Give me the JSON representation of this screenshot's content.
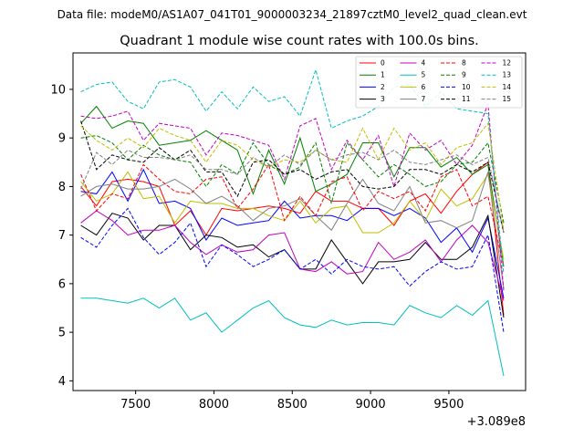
{
  "figure": {
    "suptitle": "Data file: modeM0/AS1A07_041T01_9000003234_21897cztM0_level2_quad_clean.evt"
  },
  "chart_data": {
    "type": "line",
    "title": "Quadrant 1 module wise count rates with 100.0s bins.",
    "xlabel": "",
    "ylabel": "",
    "x_offset_label": "+3.089e8",
    "xlim": [
      7100,
      9990
    ],
    "ylim": [
      3.8,
      10.75
    ],
    "x_ticks": [
      7500,
      8000,
      8500,
      9000,
      9500
    ],
    "x_tick_labels": [
      "7500",
      "8000",
      "8500",
      "9000",
      "9500"
    ],
    "y_ticks": [
      4,
      5,
      6,
      7,
      8,
      9,
      10
    ],
    "y_tick_labels": [
      "4",
      "5",
      "6",
      "7",
      "8",
      "9",
      "10"
    ],
    "grid": false,
    "legend_position": "upper-right",
    "x": [
      7150,
      7250,
      7350,
      7450,
      7550,
      7650,
      7750,
      7850,
      7950,
      8050,
      8150,
      8250,
      8350,
      8450,
      8550,
      8650,
      8750,
      8850,
      8950,
      9050,
      9150,
      9250,
      9350,
      9450,
      9550,
      9650,
      9750,
      9850
    ],
    "series": [
      {
        "name": "0",
        "color": "#ff0000",
        "dash": "solid",
        "values": [
          8.0,
          7.6,
          8.1,
          8.15,
          8.1,
          8.0,
          7.2,
          7.5,
          7.0,
          7.55,
          7.5,
          7.55,
          7.6,
          7.55,
          7.45,
          7.9,
          7.7,
          7.7,
          7.55,
          7.55,
          7.2,
          7.7,
          7.85,
          7.45,
          7.9,
          8.25,
          8.5,
          5.35
        ]
      },
      {
        "name": "1",
        "color": "#008000",
        "dash": "solid",
        "values": [
          9.3,
          9.65,
          9.2,
          9.35,
          9.3,
          8.85,
          8.9,
          8.95,
          9.15,
          8.95,
          8.75,
          7.85,
          8.75,
          8.05,
          9.0,
          7.9,
          8.05,
          8.25,
          8.9,
          8.9,
          8.2,
          8.8,
          8.8,
          8.4,
          8.6,
          8.25,
          8.45,
          6.35
        ]
      },
      {
        "name": "2",
        "color": "#0000ff",
        "dash": "solid",
        "values": [
          7.9,
          7.85,
          8.3,
          7.7,
          8.35,
          7.65,
          7.7,
          7.55,
          6.9,
          7.35,
          7.2,
          7.25,
          7.3,
          7.7,
          7.35,
          7.4,
          7.4,
          7.3,
          7.55,
          7.55,
          7.4,
          7.55,
          7.35,
          6.85,
          7.15,
          6.65,
          7.35,
          5.7
        ]
      },
      {
        "name": "3",
        "color": "#000000",
        "dash": "solid",
        "values": [
          7.2,
          7.0,
          7.45,
          7.35,
          6.9,
          7.2,
          7.2,
          6.7,
          7.0,
          6.95,
          6.75,
          6.8,
          6.55,
          6.7,
          6.3,
          6.3,
          6.9,
          6.45,
          6.0,
          6.45,
          6.45,
          6.5,
          6.85,
          6.5,
          6.5,
          6.75,
          7.4,
          5.3
        ]
      },
      {
        "name": "4",
        "color": "#c000c0",
        "dash": "solid",
        "values": [
          7.25,
          7.5,
          7.3,
          7.0,
          7.1,
          7.1,
          7.2,
          6.85,
          6.6,
          6.8,
          6.65,
          6.7,
          7.0,
          7.05,
          6.3,
          6.25,
          6.45,
          6.2,
          6.25,
          6.85,
          6.5,
          6.65,
          6.9,
          6.45,
          6.9,
          7.2,
          6.85,
          5.65
        ]
      },
      {
        "name": "5",
        "color": "#00bfbf",
        "dash": "solid",
        "values": [
          5.7,
          5.7,
          5.65,
          5.6,
          5.7,
          5.5,
          5.7,
          5.25,
          5.4,
          5.0,
          5.25,
          5.5,
          5.65,
          5.3,
          5.15,
          5.1,
          5.25,
          5.15,
          5.2,
          5.2,
          5.15,
          5.55,
          5.4,
          5.3,
          5.55,
          5.35,
          5.65,
          4.1
        ]
      },
      {
        "name": "6",
        "color": "#bfbf00",
        "dash": "solid",
        "values": [
          8.1,
          7.7,
          7.85,
          8.3,
          7.75,
          7.8,
          7.25,
          7.7,
          7.65,
          7.65,
          7.55,
          7.55,
          7.4,
          7.3,
          7.7,
          7.25,
          7.55,
          7.6,
          7.05,
          7.05,
          7.25,
          7.7,
          7.3,
          7.95,
          7.6,
          7.75,
          8.25,
          6.5
        ]
      },
      {
        "name": "7",
        "color": "#808080",
        "dash": "solid",
        "values": [
          7.8,
          8.0,
          8.05,
          7.95,
          7.95,
          8.0,
          8.15,
          7.95,
          7.65,
          7.8,
          7.6,
          7.3,
          7.55,
          7.6,
          7.75,
          7.4,
          7.1,
          7.65,
          8.15,
          7.65,
          7.5,
          8.0,
          7.25,
          7.3,
          7.15,
          7.3,
          8.3,
          5.9
        ]
      },
      {
        "name": "8",
        "color": "#ff0000",
        "dash": "dashed",
        "values": [
          8.25,
          7.5,
          7.85,
          7.75,
          8.45,
          8.15,
          7.9,
          7.85,
          8.15,
          8.2,
          7.55,
          7.95,
          8.45,
          7.3,
          7.8,
          7.4,
          8.1,
          8.2,
          7.5,
          7.9,
          7.75,
          7.9,
          7.5,
          8.2,
          8.35,
          7.6,
          7.8,
          6.35
        ]
      },
      {
        "name": "9",
        "color": "#008000",
        "dash": "dashed",
        "values": [
          9.0,
          9.05,
          8.9,
          8.55,
          8.85,
          8.65,
          8.55,
          8.5,
          8.0,
          8.45,
          8.25,
          8.9,
          8.45,
          8.25,
          8.4,
          8.9,
          7.65,
          8.9,
          8.55,
          8.2,
          8.45,
          8.25,
          8.0,
          8.1,
          8.45,
          8.5,
          8.9,
          7.25
        ]
      },
      {
        "name": "10",
        "color": "#0000ff",
        "dash": "dashed",
        "values": [
          6.95,
          6.75,
          7.2,
          7.55,
          6.95,
          6.6,
          6.85,
          7.25,
          6.35,
          6.8,
          6.6,
          6.35,
          6.5,
          6.7,
          6.3,
          6.5,
          6.2,
          6.5,
          6.35,
          6.3,
          6.35,
          5.95,
          6.25,
          6.45,
          6.3,
          6.35,
          7.0,
          5.0
        ]
      },
      {
        "name": "11",
        "color": "#000000",
        "dash": "dashed",
        "values": [
          9.35,
          8.35,
          8.65,
          8.55,
          8.5,
          8.8,
          8.55,
          8.75,
          8.3,
          8.3,
          7.8,
          8.5,
          8.55,
          8.25,
          8.35,
          8.15,
          8.3,
          8.35,
          8.0,
          7.95,
          8.0,
          8.35,
          8.35,
          8.25,
          8.45,
          8.3,
          8.5,
          7.05
        ]
      },
      {
        "name": "12",
        "color": "#c000c0",
        "dash": "dashed",
        "values": [
          9.45,
          9.4,
          9.45,
          9.55,
          8.95,
          9.3,
          9.25,
          9.2,
          8.65,
          9.1,
          9.05,
          8.95,
          8.85,
          8.15,
          9.25,
          9.4,
          8.35,
          8.95,
          8.55,
          9.05,
          8.0,
          9.1,
          8.75,
          8.95,
          8.45,
          8.85,
          9.7,
          5.85
        ]
      },
      {
        "name": "13",
        "color": "#00bfbf",
        "dash": "dashed",
        "values": [
          9.95,
          10.1,
          10.15,
          9.75,
          9.6,
          10.15,
          10.2,
          10.05,
          9.55,
          9.95,
          9.6,
          10.05,
          9.75,
          9.85,
          9.45,
          10.4,
          9.2,
          9.35,
          9.45,
          9.65,
          10.05,
          10.1,
          9.65,
          9.95,
          9.6,
          9.55,
          9.5,
          6.2
        ]
      },
      {
        "name": "14",
        "color": "#bfbf00",
        "dash": "dashed",
        "values": [
          9.25,
          8.95,
          8.75,
          9.0,
          8.8,
          9.2,
          9.05,
          8.95,
          8.5,
          8.95,
          8.85,
          8.55,
          8.4,
          8.55,
          8.5,
          8.75,
          8.55,
          8.5,
          9.2,
          8.55,
          9.2,
          8.75,
          8.9,
          8.45,
          8.8,
          8.9,
          9.3,
          7.1
        ]
      },
      {
        "name": "15",
        "color": "#808080",
        "dash": "dashed",
        "values": [
          7.95,
          8.7,
          8.45,
          8.75,
          8.6,
          8.6,
          8.55,
          8.65,
          8.35,
          8.35,
          8.25,
          8.6,
          8.4,
          8.65,
          8.45,
          8.75,
          8.55,
          8.65,
          8.7,
          8.55,
          8.75,
          8.5,
          8.45,
          8.55,
          8.65,
          8.45,
          8.6,
          7.05
        ]
      }
    ]
  }
}
